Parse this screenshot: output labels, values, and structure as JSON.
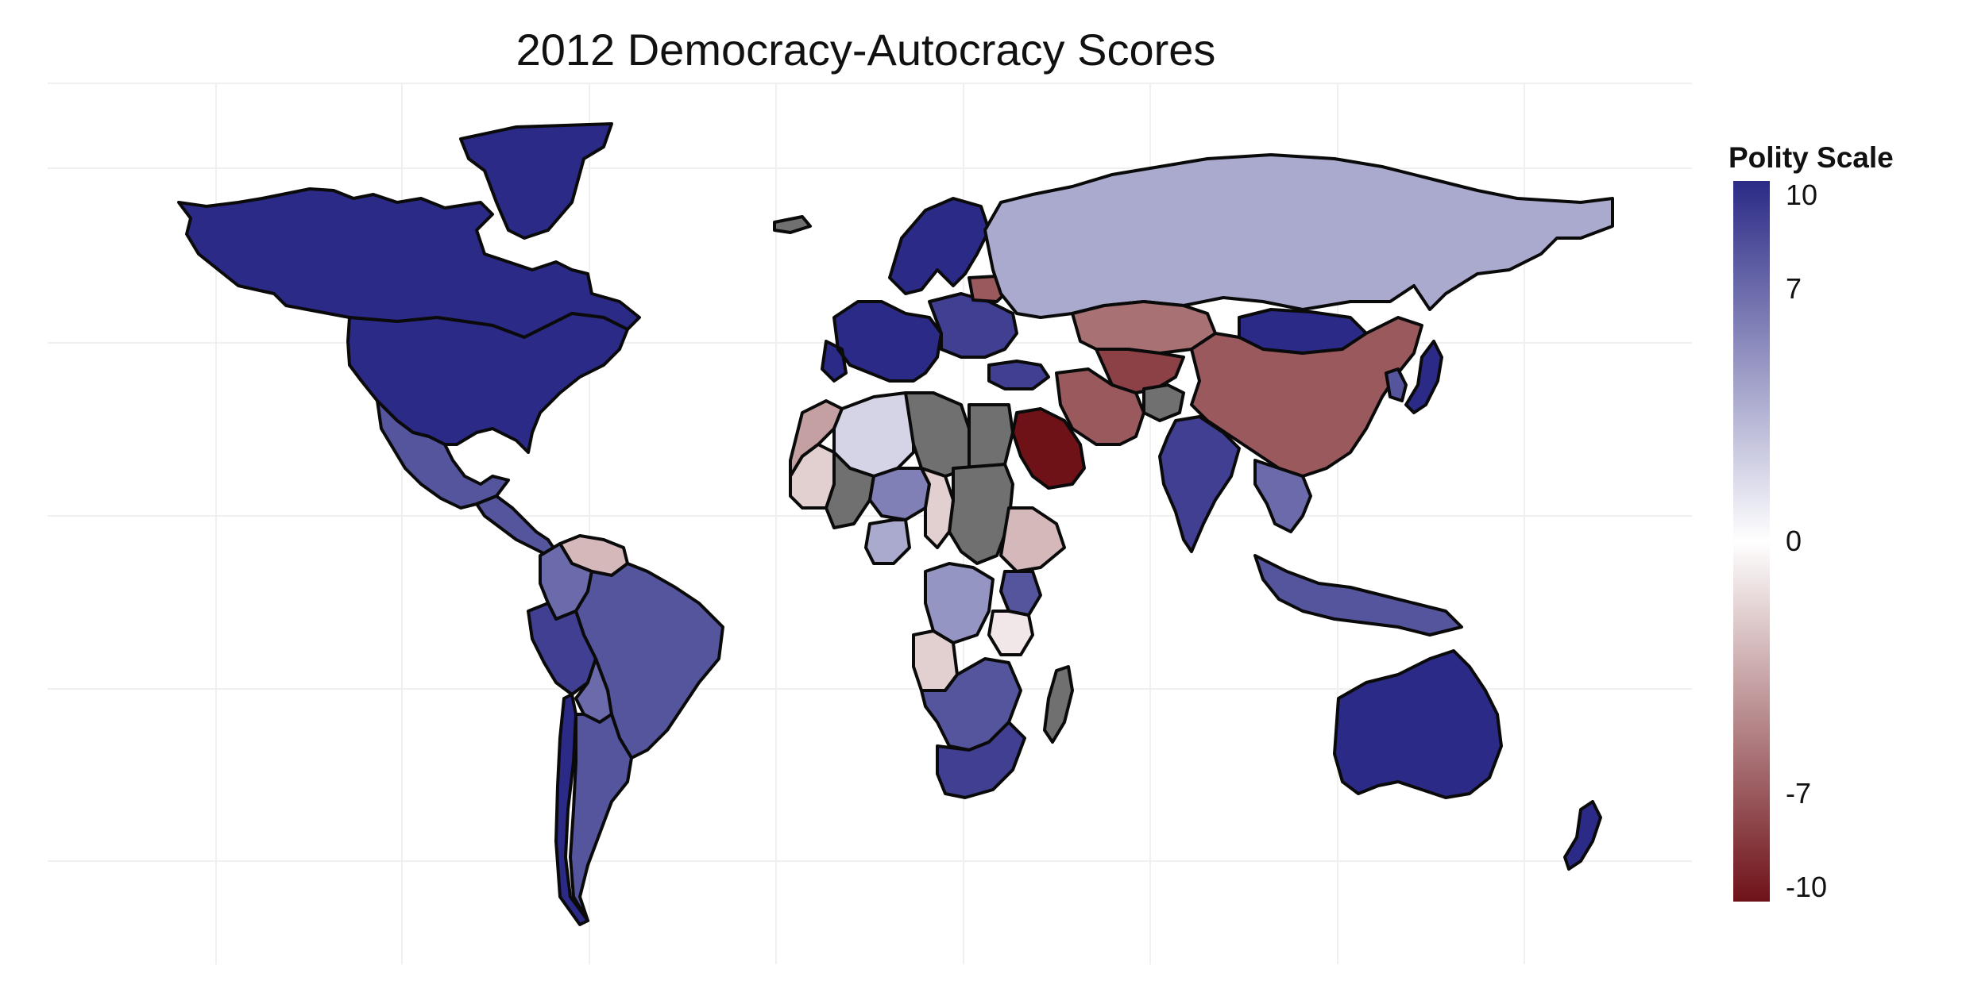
{
  "title": "2012 Democracy-Autocracy Scores",
  "legend": {
    "title": "Polity Scale",
    "min": -10,
    "max": 10,
    "ticks": [
      10,
      7,
      0,
      -7,
      -10
    ],
    "tick_labels": [
      "10",
      "7",
      "0",
      "-7",
      "-10"
    ],
    "colors": {
      "high": "#2b2a86",
      "mid": "#ffffff",
      "low": "#6e1218",
      "missing": "#707070"
    }
  },
  "regions": [
    {
      "name": "Canada",
      "score": 10
    },
    {
      "name": "United States",
      "score": 10
    },
    {
      "name": "Greenland",
      "score": 10
    },
    {
      "name": "Mexico",
      "score": 8
    },
    {
      "name": "Central America",
      "score": 8
    },
    {
      "name": "Venezuela",
      "score": -3
    },
    {
      "name": "Colombia",
      "score": 7
    },
    {
      "name": "Brazil",
      "score": 8
    },
    {
      "name": "Peru",
      "score": 9
    },
    {
      "name": "Bolivia",
      "score": 7
    },
    {
      "name": "Argentina",
      "score": 8
    },
    {
      "name": "Chile",
      "score": 10
    },
    {
      "name": "Western Europe",
      "score": 10
    },
    {
      "name": "Scandinavia",
      "score": 10
    },
    {
      "name": "Eastern Europe",
      "score": 9
    },
    {
      "name": "Belarus",
      "score": -7
    },
    {
      "name": "Turkey",
      "score": 9
    },
    {
      "name": "Russia",
      "score": 4
    },
    {
      "name": "Kazakhstan",
      "score": -6
    },
    {
      "name": "Mongolia",
      "score": 10
    },
    {
      "name": "China",
      "score": -7
    },
    {
      "name": "Iran",
      "score": -7
    },
    {
      "name": "Central Asia",
      "score": -8
    },
    {
      "name": "Afghanistan",
      "score": null
    },
    {
      "name": "Saudi Arabia",
      "score": -10
    },
    {
      "name": "India",
      "score": 9
    },
    {
      "name": "Southeast Asia",
      "score": 7
    },
    {
      "name": "Indonesia",
      "score": 8
    },
    {
      "name": "Japan",
      "score": 10
    },
    {
      "name": "Korea",
      "score": 8
    },
    {
      "name": "Australia",
      "score": 10
    },
    {
      "name": "New Zealand",
      "score": 10
    },
    {
      "name": "Morocco",
      "score": -4
    },
    {
      "name": "Algeria",
      "score": 2
    },
    {
      "name": "Libya",
      "score": null
    },
    {
      "name": "Egypt",
      "score": null
    },
    {
      "name": "Sudan",
      "score": null
    },
    {
      "name": "Ethiopia",
      "score": -3
    },
    {
      "name": "Mali",
      "score": null
    },
    {
      "name": "Mauritania",
      "score": -2
    },
    {
      "name": "Niger",
      "score": 6
    },
    {
      "name": "Nigeria",
      "score": 4
    },
    {
      "name": "Chad",
      "score": -2
    },
    {
      "name": "DR Congo",
      "score": 5
    },
    {
      "name": "Angola",
      "score": -2
    },
    {
      "name": "Tanzania",
      "score": -1
    },
    {
      "name": "Kenya",
      "score": 8
    },
    {
      "name": "Southern Africa",
      "score": 8
    },
    {
      "name": "South Africa",
      "score": 9
    },
    {
      "name": "Madagascar",
      "score": null
    },
    {
      "name": "Iceland",
      "score": null
    }
  ]
}
